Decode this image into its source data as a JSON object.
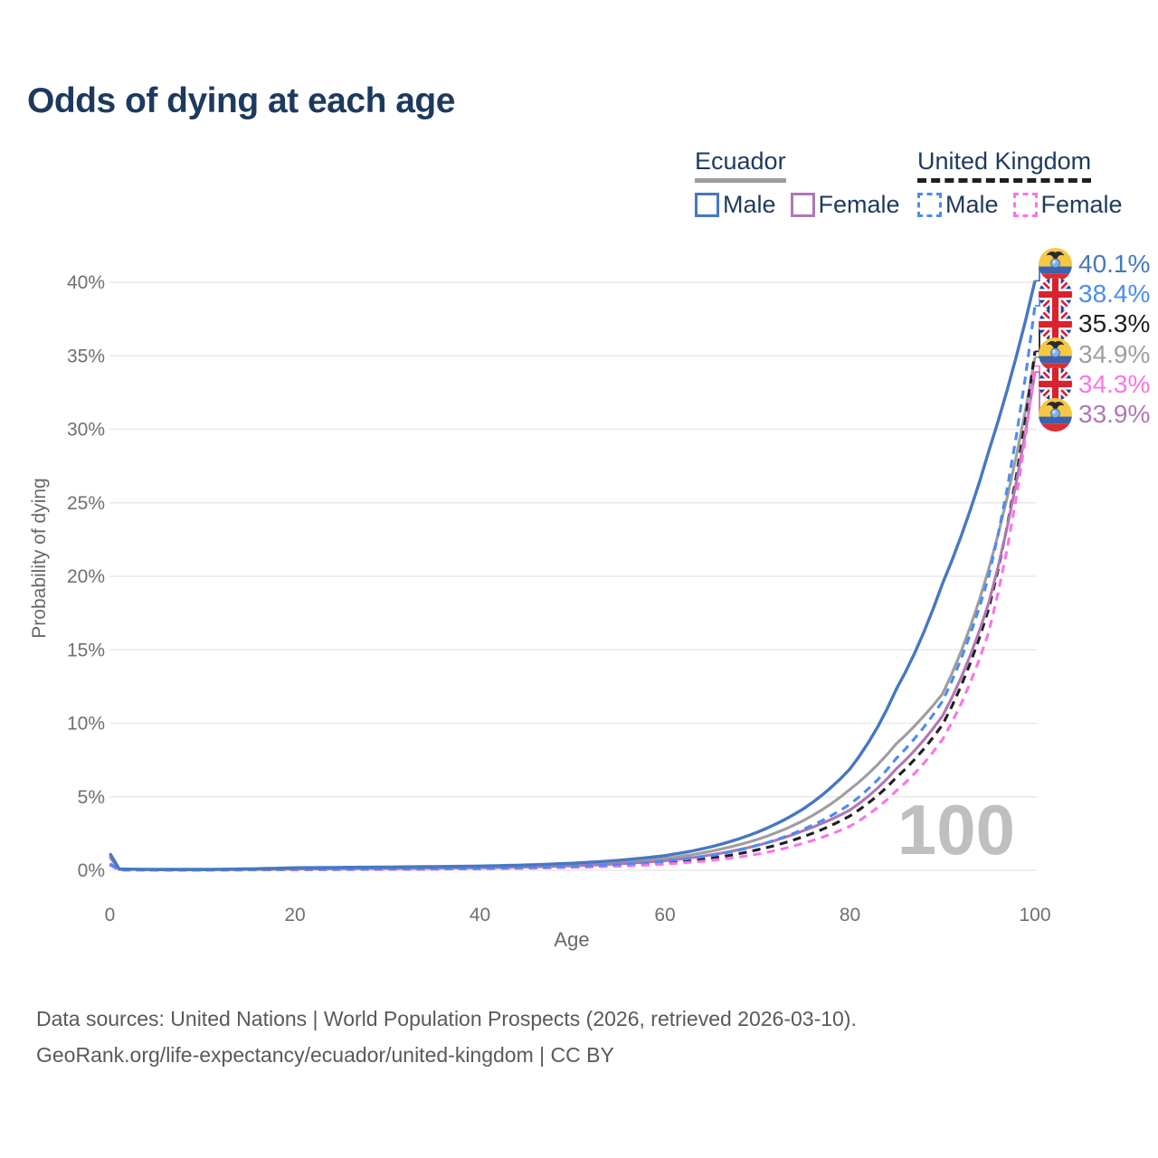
{
  "title": "Odds of dying at each age",
  "watermark": "100",
  "legend": {
    "ecuador": {
      "title": "Ecuador",
      "male": "Male",
      "female": "Female"
    },
    "uk": {
      "title": "United Kingdom",
      "male": "Male",
      "female": "Female"
    }
  },
  "colors": {
    "ec_male": "#4678c1",
    "ec_female": "#b077b4",
    "ec_total": "#9e9e9e",
    "uk_male": "#4b8cf2",
    "uk_female": "#fb74e4",
    "uk_total": "#1f1f1f",
    "title_navy": "#1d3a5e",
    "tick_gray": "#6f6f6f",
    "grid_gray": "#e9e9e9",
    "watermark_gray": "#bfbfbf"
  },
  "chart_data": {
    "type": "line",
    "title": "Odds of dying at each age",
    "xlabel": "Age",
    "ylabel": "Probability of dying",
    "xlim": [
      0,
      100
    ],
    "ylim": [
      0,
      40
    ],
    "x_ticks": [
      0,
      20,
      40,
      60,
      80,
      100
    ],
    "y_ticks": [
      0,
      5,
      10,
      15,
      20,
      25,
      30,
      35,
      40
    ],
    "y_tick_suffix": "%",
    "grid": "horizontal-only",
    "legend_position": "top-right",
    "series": [
      {
        "id": "ec_total",
        "name": "Ecuador",
        "sex": "total",
        "color": "#9e9e9e",
        "dashed": false,
        "points": [
          [
            0,
            1.0
          ],
          [
            1,
            0.08
          ],
          [
            5,
            0.05
          ],
          [
            10,
            0.05
          ],
          [
            15,
            0.08
          ],
          [
            20,
            0.13
          ],
          [
            25,
            0.15
          ],
          [
            30,
            0.17
          ],
          [
            35,
            0.19
          ],
          [
            40,
            0.22
          ],
          [
            45,
            0.28
          ],
          [
            50,
            0.38
          ],
          [
            55,
            0.54
          ],
          [
            60,
            0.8
          ],
          [
            65,
            1.3
          ],
          [
            70,
            2.1
          ],
          [
            75,
            3.4
          ],
          [
            80,
            5.5
          ],
          [
            85,
            8.6
          ],
          [
            90,
            12.0
          ],
          [
            95,
            20.5
          ],
          [
            100,
            34.9
          ]
        ]
      },
      {
        "id": "uk_total",
        "name": "United Kingdom",
        "sex": "total",
        "color": "#1f1f1f",
        "dashed": true,
        "points": [
          [
            0,
            0.4
          ],
          [
            1,
            0.03
          ],
          [
            5,
            0.02
          ],
          [
            10,
            0.02
          ],
          [
            15,
            0.03
          ],
          [
            20,
            0.05
          ],
          [
            25,
            0.06
          ],
          [
            30,
            0.07
          ],
          [
            35,
            0.09
          ],
          [
            40,
            0.12
          ],
          [
            45,
            0.16
          ],
          [
            50,
            0.23
          ],
          [
            55,
            0.33
          ],
          [
            60,
            0.5
          ],
          [
            65,
            0.82
          ],
          [
            70,
            1.4
          ],
          [
            75,
            2.3
          ],
          [
            80,
            3.7
          ],
          [
            85,
            6.3
          ],
          [
            90,
            9.9
          ],
          [
            95,
            17.8
          ],
          [
            100,
            35.3
          ]
        ]
      },
      {
        "id": "ec_female",
        "name": "Ecuador Female",
        "sex": "female",
        "color": "#b077b4",
        "dashed": false,
        "points": [
          [
            0,
            0.9
          ],
          [
            1,
            0.07
          ],
          [
            5,
            0.04
          ],
          [
            10,
            0.04
          ],
          [
            15,
            0.06
          ],
          [
            20,
            0.09
          ],
          [
            25,
            0.11
          ],
          [
            30,
            0.12
          ],
          [
            35,
            0.14
          ],
          [
            40,
            0.17
          ],
          [
            45,
            0.22
          ],
          [
            50,
            0.3
          ],
          [
            55,
            0.44
          ],
          [
            60,
            0.65
          ],
          [
            65,
            1.05
          ],
          [
            70,
            1.7
          ],
          [
            75,
            2.7
          ],
          [
            80,
            4.1
          ],
          [
            85,
            6.9
          ],
          [
            90,
            10.5
          ],
          [
            95,
            18.2
          ],
          [
            100,
            33.9
          ]
        ]
      },
      {
        "id": "uk_female",
        "name": "United Kingdom Female",
        "sex": "female",
        "color": "#fb74e4",
        "dashed": true,
        "points": [
          [
            0,
            0.35
          ],
          [
            1,
            0.02
          ],
          [
            5,
            0.015
          ],
          [
            10,
            0.015
          ],
          [
            15,
            0.025
          ],
          [
            20,
            0.035
          ],
          [
            25,
            0.05
          ],
          [
            30,
            0.06
          ],
          [
            35,
            0.08
          ],
          [
            40,
            0.1
          ],
          [
            45,
            0.14
          ],
          [
            50,
            0.2
          ],
          [
            55,
            0.28
          ],
          [
            60,
            0.42
          ],
          [
            65,
            0.68
          ],
          [
            70,
            1.1
          ],
          [
            75,
            1.85
          ],
          [
            80,
            3.0
          ],
          [
            85,
            5.4
          ],
          [
            90,
            8.9
          ],
          [
            95,
            16.2
          ],
          [
            100,
            34.3
          ]
        ]
      },
      {
        "id": "uk_male",
        "name": "United Kingdom Male",
        "sex": "male",
        "color": "#4b8cf2",
        "dashed": true,
        "points": [
          [
            0,
            0.45
          ],
          [
            1,
            0.03
          ],
          [
            5,
            0.02
          ],
          [
            10,
            0.02
          ],
          [
            15,
            0.04
          ],
          [
            20,
            0.06
          ],
          [
            25,
            0.07
          ],
          [
            30,
            0.09
          ],
          [
            35,
            0.11
          ],
          [
            40,
            0.14
          ],
          [
            45,
            0.19
          ],
          [
            50,
            0.27
          ],
          [
            55,
            0.4
          ],
          [
            60,
            0.62
          ],
          [
            65,
            1.0
          ],
          [
            70,
            1.7
          ],
          [
            75,
            2.8
          ],
          [
            80,
            4.5
          ],
          [
            85,
            7.6
          ],
          [
            90,
            11.5
          ],
          [
            95,
            20.0
          ],
          [
            100,
            38.4
          ]
        ]
      },
      {
        "id": "ec_male",
        "name": "Ecuador Male",
        "sex": "male",
        "color": "#4678c1",
        "dashed": false,
        "points": [
          [
            0,
            1.15
          ],
          [
            1,
            0.09
          ],
          [
            5,
            0.06
          ],
          [
            10,
            0.06
          ],
          [
            15,
            0.1
          ],
          [
            20,
            0.17
          ],
          [
            25,
            0.2
          ],
          [
            30,
            0.22
          ],
          [
            35,
            0.25
          ],
          [
            40,
            0.29
          ],
          [
            45,
            0.36
          ],
          [
            50,
            0.48
          ],
          [
            55,
            0.68
          ],
          [
            60,
            1.0
          ],
          [
            65,
            1.6
          ],
          [
            70,
            2.6
          ],
          [
            75,
            4.2
          ],
          [
            80,
            6.9
          ],
          [
            85,
            12.3
          ],
          [
            90,
            19.5
          ],
          [
            95,
            28.5
          ],
          [
            100,
            40.1
          ]
        ]
      }
    ],
    "end_labels": [
      {
        "value": "40.1%",
        "series": "ec_male",
        "flag": "ecuador"
      },
      {
        "value": "38.4%",
        "series": "uk_male",
        "flag": "uk"
      },
      {
        "value": "35.3%",
        "series": "uk_total",
        "flag": "uk"
      },
      {
        "value": "34.9%",
        "series": "ec_total",
        "flag": "ecuador"
      },
      {
        "value": "34.3%",
        "series": "uk_female",
        "flag": "uk"
      },
      {
        "value": "33.9%",
        "series": "ec_female",
        "flag": "ecuador"
      }
    ]
  },
  "footer": {
    "line1": "Data sources: United Nations | World Population Prospects (2026, retrieved 2026-03-10).",
    "line2": "GeoRank.org/life-expectancy/ecuador/united-kingdom | CC BY"
  }
}
